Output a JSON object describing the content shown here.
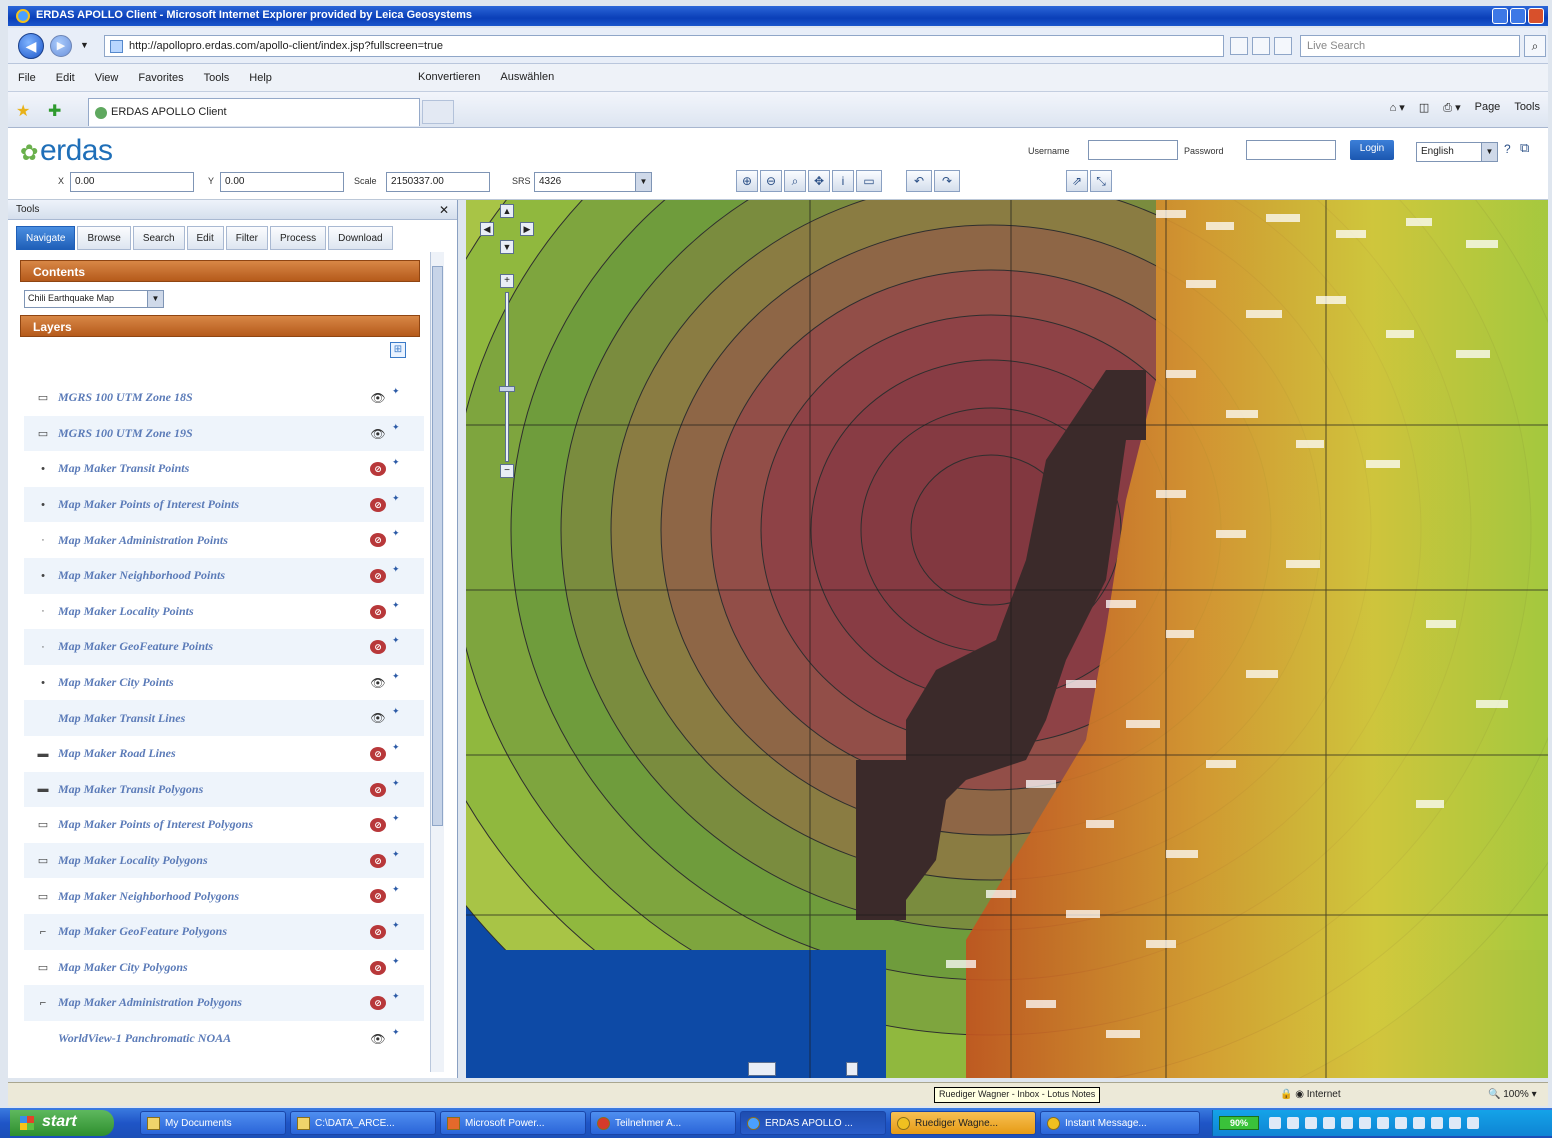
{
  "window": {
    "title": "ERDAS APOLLO Client - Microsoft Internet Explorer provided by Leica Geosystems"
  },
  "address_bar": {
    "url": "http://apollopro.erdas.com/apollo-client/index.jsp?fullscreen=true",
    "search_placeholder": "Live Search"
  },
  "menu": {
    "items": [
      "File",
      "Edit",
      "View",
      "Favorites",
      "Tools",
      "Help"
    ],
    "extras": [
      "Konvertieren",
      "Auswählen"
    ]
  },
  "tabs": {
    "active_tab_label": "ERDAS APOLLO Client",
    "commands": [
      "Page",
      "Tools"
    ]
  },
  "erdas": {
    "logo": "erdas",
    "x_label": "X",
    "x_value": "0.00",
    "y_label": "Y",
    "y_value": "0.00",
    "scale_label": "Scale",
    "scale_value": "2150337.00",
    "srs_label": "SRS",
    "srs_value": "4326",
    "username_label": "Username",
    "password_label": "Password",
    "login_label": "Login",
    "language": "English"
  },
  "tools": {
    "header": "Tools",
    "tabs": [
      "Navigate",
      "Browse",
      "Search",
      "Edit",
      "Filter",
      "Process",
      "Download"
    ],
    "active_tab": "Navigate",
    "contents_title": "Contents",
    "map_name": "Chili Earthquake Map",
    "layers_title": "Layers",
    "layers": [
      {
        "name": "MGRS 100 UTM Zone 18S",
        "symbol": "▭",
        "visible": true
      },
      {
        "name": "MGRS 100 UTM Zone 19S",
        "symbol": "▭",
        "visible": true
      },
      {
        "name": "Map Maker Transit Points",
        "symbol": "•",
        "visible": false
      },
      {
        "name": "Map Maker Points of Interest Points",
        "symbol": "•",
        "visible": false
      },
      {
        "name": "Map Maker Administration Points",
        "symbol": "·",
        "visible": false
      },
      {
        "name": "Map Maker Neighborhood Points",
        "symbol": "•",
        "visible": false
      },
      {
        "name": "Map Maker Locality Points",
        "symbol": "·",
        "visible": false
      },
      {
        "name": "Map Maker GeoFeature Points",
        "symbol": "·",
        "visible": false
      },
      {
        "name": "Map Maker City Points",
        "symbol": "•",
        "visible": true
      },
      {
        "name": "Map Maker Transit Lines",
        "symbol": "",
        "visible": true
      },
      {
        "name": "Map Maker Road Lines",
        "symbol": "▬",
        "visible": false
      },
      {
        "name": "Map Maker Transit Polygons",
        "symbol": "▬",
        "visible": false
      },
      {
        "name": "Map Maker Points of Interest Polygons",
        "symbol": "▭",
        "visible": false
      },
      {
        "name": "Map Maker Locality Polygons",
        "symbol": "▭",
        "visible": false
      },
      {
        "name": "Map Maker Neighborhood Polygons",
        "symbol": "▭",
        "visible": false
      },
      {
        "name": "Map Maker GeoFeature Polygons",
        "symbol": "⌐",
        "visible": false
      },
      {
        "name": "Map Maker City Polygons",
        "symbol": "▭",
        "visible": false
      },
      {
        "name": "Map Maker Administration Polygons",
        "symbol": "⌐",
        "visible": false
      },
      {
        "name": "WorldView-1 Panchromatic NOAA",
        "symbol": "",
        "visible": true
      }
    ]
  },
  "statusbar": {
    "tooltip": "Ruediger Wagner - Inbox - Lotus Notes",
    "zone": "Internet",
    "zoom": "100%"
  },
  "taskbar": {
    "start": "start",
    "items": [
      {
        "label": "My Documents",
        "state": "normal"
      },
      {
        "label": "C:\\DATA_ARCE...",
        "state": "normal"
      },
      {
        "label": "Microsoft Power...",
        "state": "normal"
      },
      {
        "label": "Teilnehmer A...",
        "state": "normal"
      },
      {
        "label": "ERDAS APOLLO ...",
        "state": "active"
      },
      {
        "label": "Ruediger Wagne...",
        "state": "highlight"
      },
      {
        "label": "Instant Message...",
        "state": "normal"
      }
    ],
    "battery": "90%"
  }
}
